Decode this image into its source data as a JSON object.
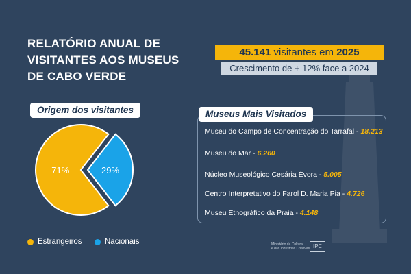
{
  "title_lines": [
    "RELATÓRIO ANUAL DE",
    "VISITANTES AOS MUSEUS",
    "DE CABO VERDE"
  ],
  "headline": {
    "count": "45.141",
    "middle": " visitantes em ",
    "year": "2025"
  },
  "growth": "Crescimento de + 12% face a 2024",
  "origin_title": "Origem dos visitantes",
  "museums_title": "Museus Mais Visitados",
  "museums": [
    {
      "name": "Museu do Campo de Concentração do Tarrafal",
      "value": "18.213"
    },
    {
      "name": "Museu do Mar",
      "value": "6.260"
    },
    {
      "name": "Núcleo Museológico Cesária Évora",
      "value": "5.005"
    },
    {
      "name": "Centro Interpretativo do Farol D. Maria Pia",
      "value": "4.726"
    },
    {
      "name": "Museu Etnográfico da Praia",
      "value": "4.148"
    }
  ],
  "footer": {
    "ministry_line1": "Ministério da Cultura",
    "ministry_line2": "e das Indústrias Criativas",
    "ipc": "IPC"
  },
  "colors": {
    "background": "#2f445e",
    "accent": "#f5b50a",
    "secondary": "#1aa3e8"
  },
  "chart_data": {
    "type": "pie",
    "title": "Origem dos visitantes",
    "categories": [
      "Estrangeiros",
      "Nacionais"
    ],
    "values": [
      71,
      29
    ],
    "labels": [
      "71%",
      "29%"
    ],
    "colors": [
      "#f5b50a",
      "#1aa3e8"
    ],
    "legend": "bottom"
  }
}
